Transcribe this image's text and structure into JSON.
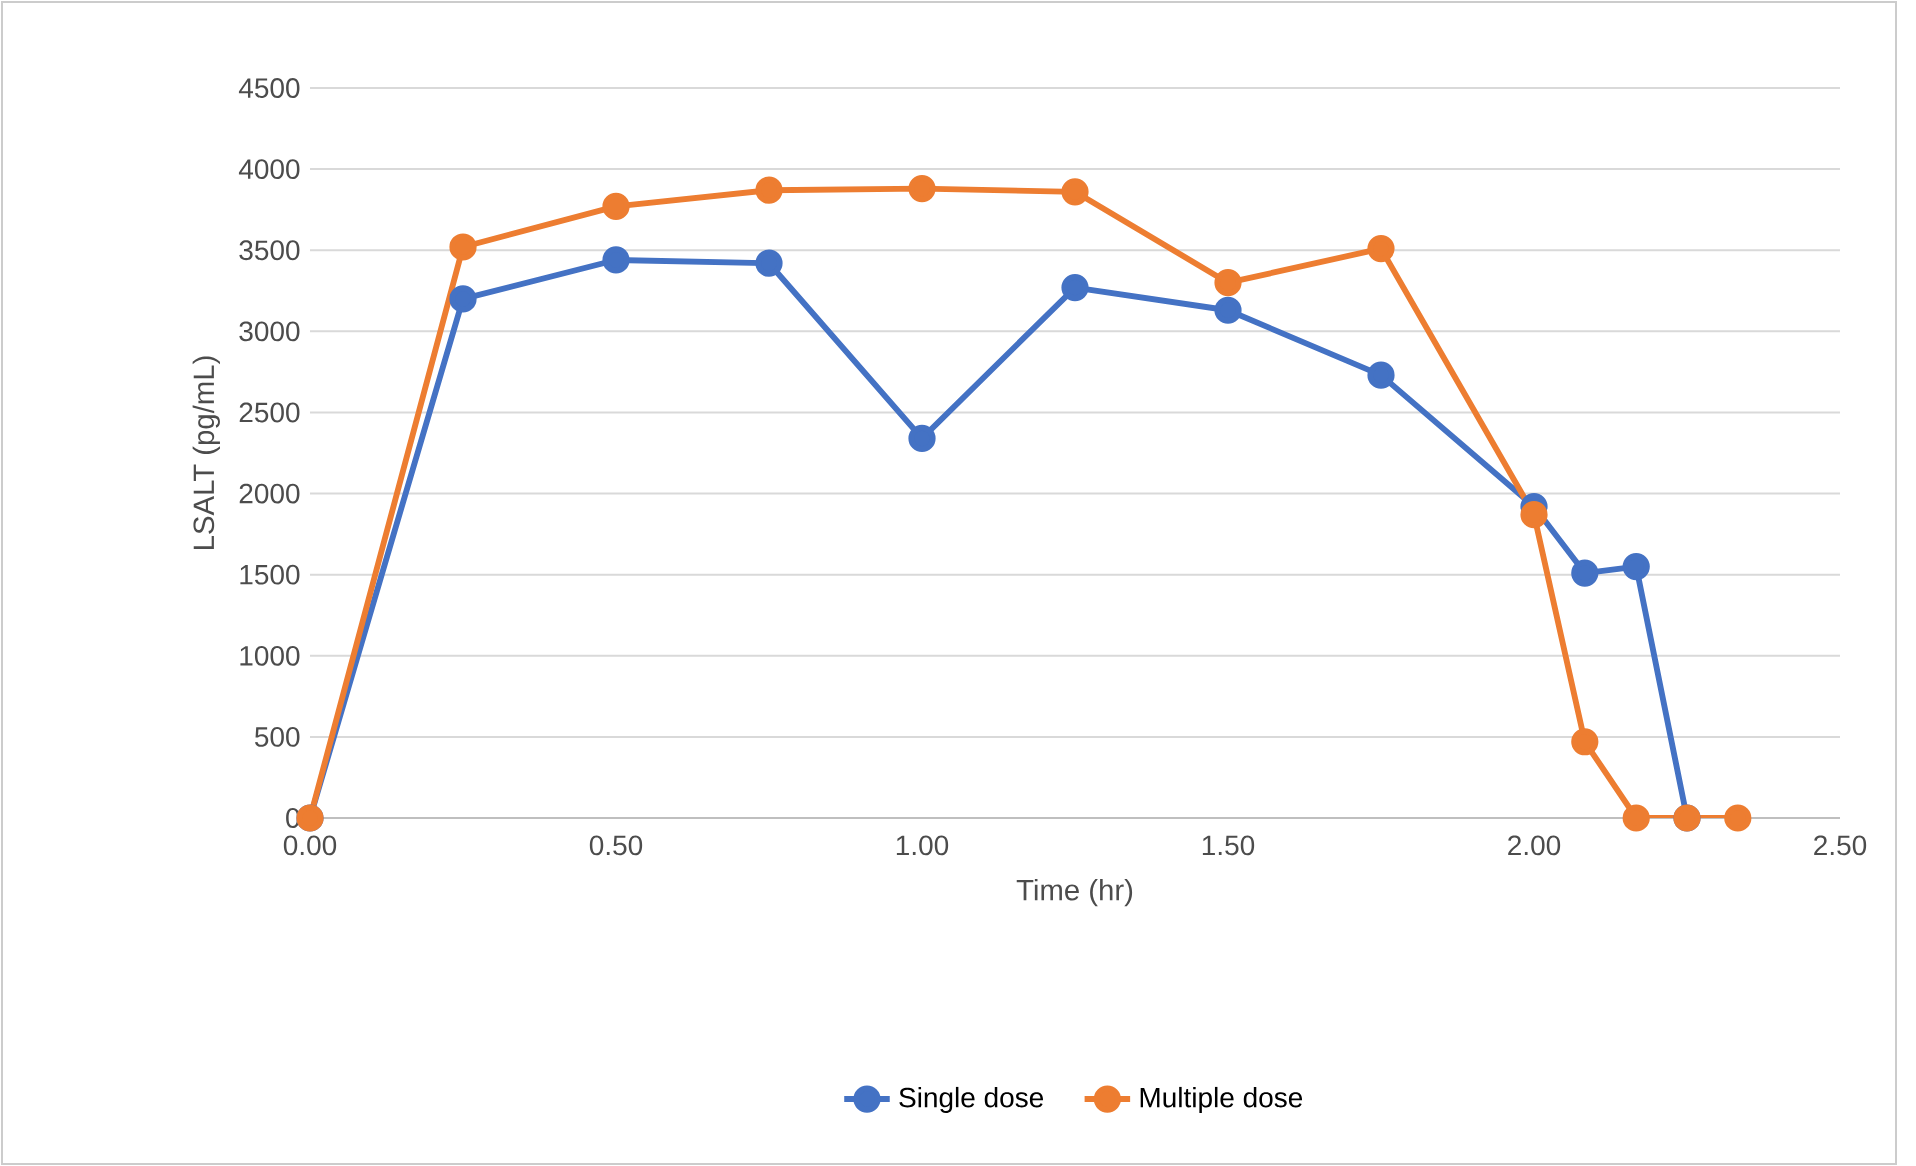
{
  "chart_data": {
    "type": "line",
    "xlabel": "Time (hr)",
    "ylabel": "LSALT (pg/mL)",
    "xlim": [
      0,
      2.5
    ],
    "ylim": [
      0,
      4500
    ],
    "xticks": [
      {
        "value": 0,
        "label": "0.00"
      },
      {
        "value": 0.5,
        "label": "0.50"
      },
      {
        "value": 1,
        "label": "1.00"
      },
      {
        "value": 1.5,
        "label": "1.50"
      },
      {
        "value": 2,
        "label": "2.00"
      },
      {
        "value": 2.5,
        "label": "2.50"
      }
    ],
    "yticks": [
      0,
      500,
      1000,
      1500,
      2000,
      2500,
      3000,
      3500,
      4000,
      4500
    ],
    "grid": "y",
    "legend": "bottom",
    "marker": "circle",
    "line_style": "solid",
    "series": [
      {
        "name": "Single dose",
        "color": "#4472c4",
        "x": [
          0,
          0.25,
          0.5,
          0.75,
          1.0,
          1.25,
          1.5,
          1.75,
          2.0,
          2.083,
          2.167,
          2.25
        ],
        "values": [
          0,
          3200,
          3440,
          3420,
          2340,
          3270,
          3130,
          2730,
          1920,
          1510,
          1550,
          0
        ]
      },
      {
        "name": "Multiple dose",
        "color": "#ed7d31",
        "x": [
          0,
          0.25,
          0.5,
          0.75,
          1.0,
          1.25,
          1.5,
          1.75,
          2.0,
          2.083,
          2.167,
          2.25,
          2.333
        ],
        "values": [
          0,
          3520,
          3770,
          3870,
          3880,
          3860,
          3300,
          3510,
          1870,
          470,
          0,
          0,
          0
        ]
      }
    ]
  }
}
